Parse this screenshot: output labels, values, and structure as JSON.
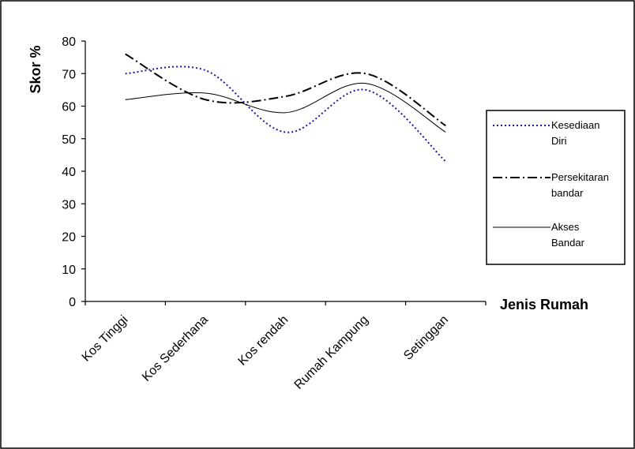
{
  "chart_data": {
    "type": "line",
    "categories": [
      "Kos Tinggi",
      "Kos Sederhana",
      "Kos rendah",
      "Rumah Kampung",
      "Setinggan"
    ],
    "series": [
      {
        "name": [
          "Kesediaan",
          "Diri"
        ],
        "values": [
          70,
          71,
          52,
          65,
          43
        ],
        "color": "#1a1aa6",
        "dash": "dotted"
      },
      {
        "name": [
          "Persekitaran",
          "bandar"
        ],
        "values": [
          76,
          62,
          63,
          70,
          54
        ],
        "color": "#000000",
        "dash": "dash-dot"
      },
      {
        "name": [
          "Akses",
          "Bandar"
        ],
        "values": [
          62,
          64,
          58,
          67,
          52
        ],
        "color": "#000000",
        "dash": "solid"
      }
    ],
    "xlabel": "Jenis Rumah",
    "ylabel": "Skor %",
    "ylim": [
      0,
      80
    ],
    "yticks": [
      0,
      10,
      20,
      30,
      40,
      50,
      60,
      70,
      80
    ],
    "grid": false,
    "legend_position": "right"
  }
}
